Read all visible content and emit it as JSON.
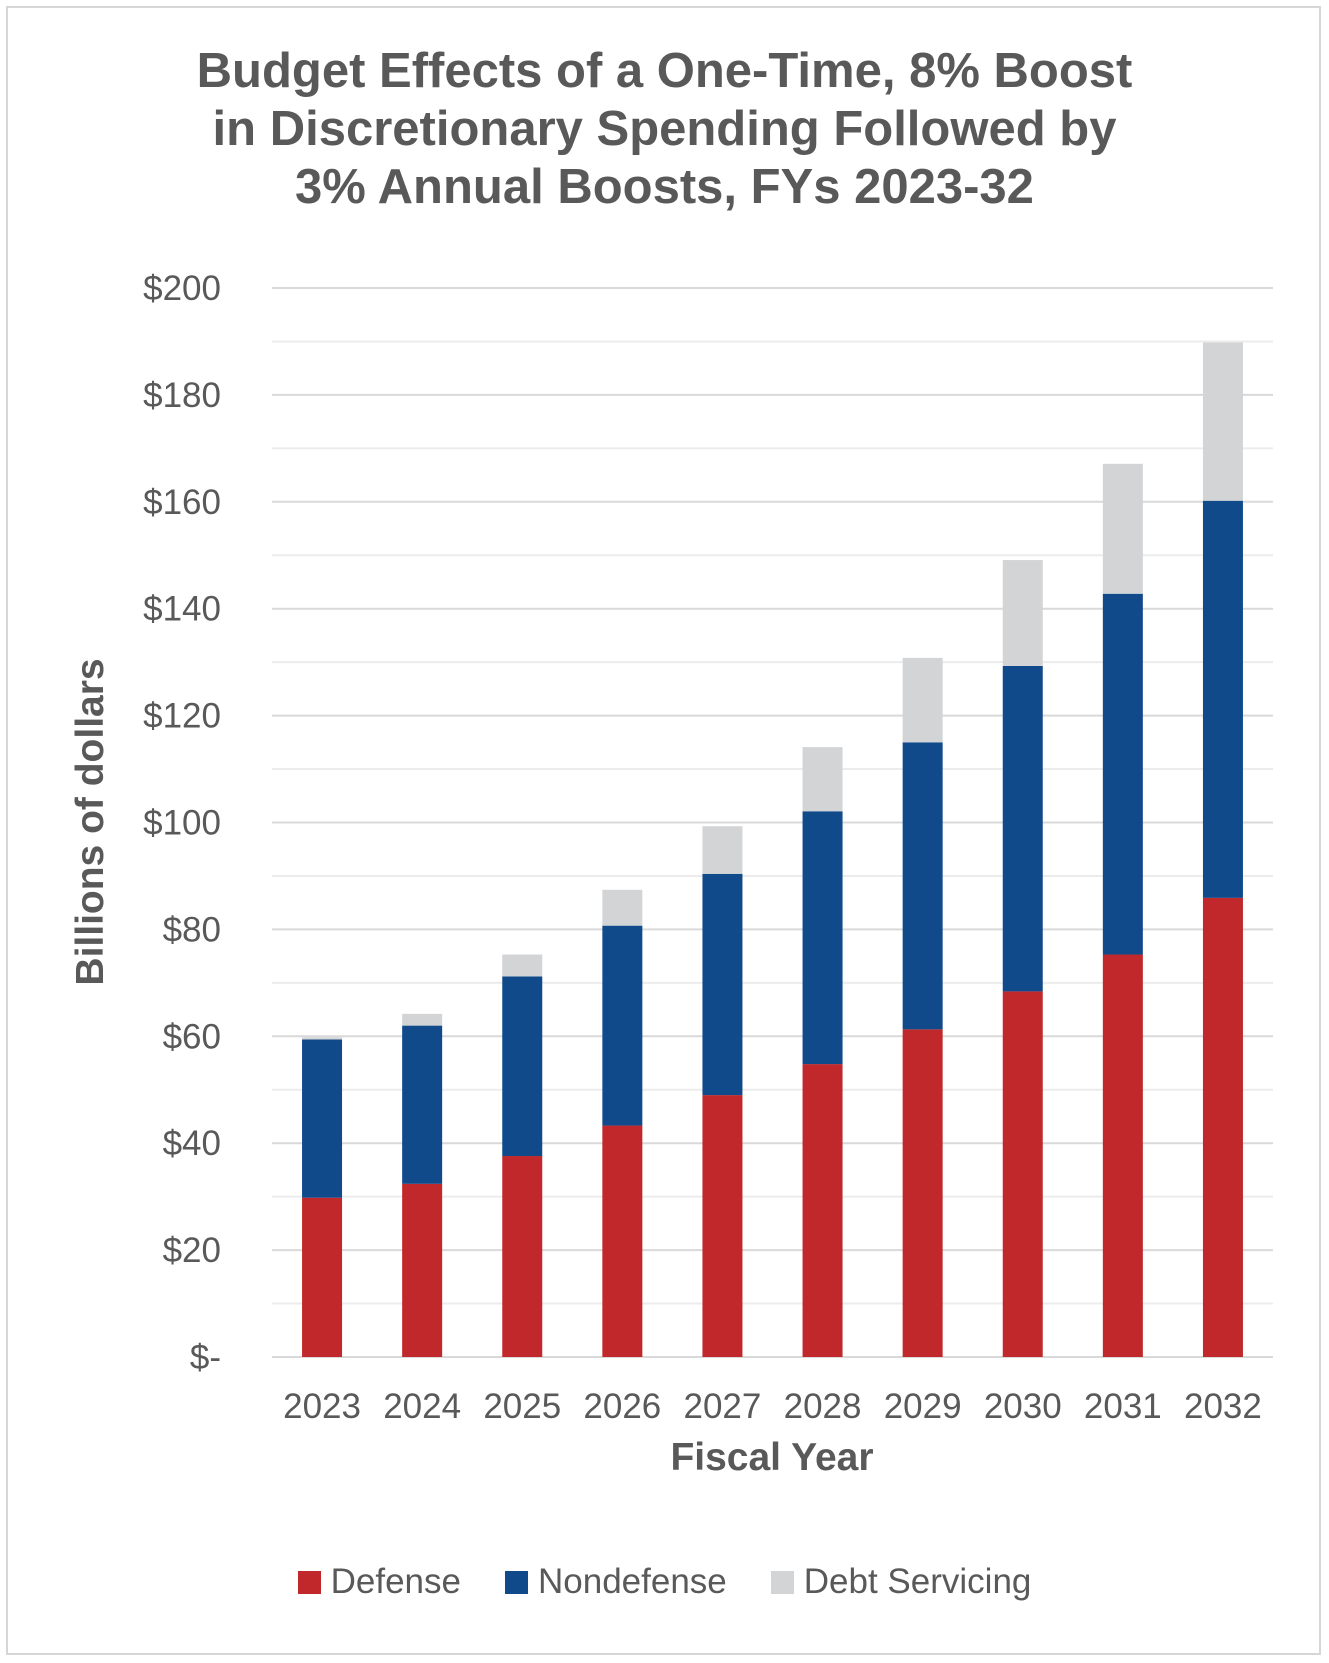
{
  "chart_data": {
    "type": "bar",
    "stacked": true,
    "title_lines": [
      "Budget Effects of a One-Time, 8% Boost",
      "in Discretionary Spending Followed by",
      "3% Annual Boosts, FYs 2023-32"
    ],
    "xlabel": "Fiscal Year",
    "ylabel": "Billions of dollars",
    "categories": [
      "2023",
      "2024",
      "2025",
      "2026",
      "2027",
      "2028",
      "2029",
      "2030",
      "2031",
      "2032"
    ],
    "ylim": [
      0,
      200
    ],
    "y_ticks": [
      0,
      20,
      40,
      60,
      80,
      100,
      120,
      140,
      160,
      180,
      200
    ],
    "y_tick_labels": [
      "$-",
      "$20",
      "$40",
      "$60",
      "$80",
      "$100",
      "$120",
      "$140",
      "$160",
      "$180",
      "$200"
    ],
    "grid": true,
    "legend_position": "bottom",
    "series": [
      {
        "name": "Defense",
        "color": "#c0282b",
        "values": [
          29.8,
          32.4,
          37.6,
          43.3,
          49.0,
          54.8,
          61.3,
          68.4,
          75.3,
          85.9
        ]
      },
      {
        "name": "Nondefense",
        "color": "#104a8b",
        "values": [
          29.6,
          29.6,
          33.6,
          37.4,
          41.4,
          47.3,
          53.7,
          60.9,
          67.5,
          74.3
        ]
      },
      {
        "name": "Debt Servicing",
        "color": "#d3d4d6",
        "values": [
          0.4,
          2.2,
          4.1,
          6.7,
          8.9,
          12.0,
          15.8,
          19.8,
          24.3,
          29.6
        ]
      }
    ]
  }
}
